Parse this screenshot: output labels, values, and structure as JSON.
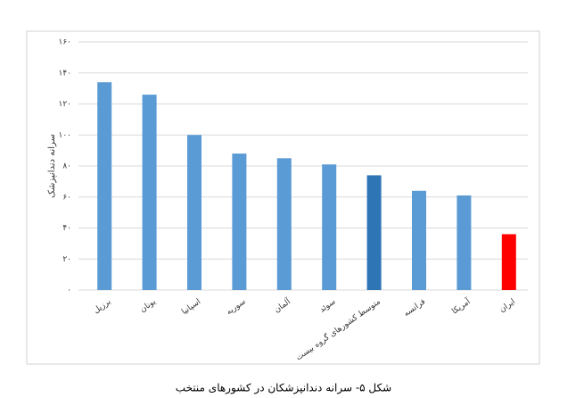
{
  "chart_data": {
    "type": "bar",
    "caption": "شکل ۵- سرانه دندانپزشکان در کشورهای منتخب",
    "y_label": "سرانه دندانپزشک",
    "categories": [
      "برزیل",
      "یونان",
      "اسپانیا",
      "سوریه",
      "آلمان",
      "سوئد",
      "متوسط کشورهای گروه بیست",
      "فرانسه",
      "آمریکا",
      "ایران"
    ],
    "values": [
      134,
      126,
      100,
      88,
      85,
      81,
      74,
      64,
      61,
      36
    ],
    "colors": [
      "#5b9bd5",
      "#5b9bd5",
      "#5b9bd5",
      "#5b9bd5",
      "#5b9bd5",
      "#5b9bd5",
      "#2e75b6",
      "#5b9bd5",
      "#5b9bd5",
      "#ff0000"
    ],
    "ylim": [
      0,
      160
    ],
    "yticks": [
      {
        "value": 0,
        "label": "۰"
      },
      {
        "value": 20,
        "label": "۲۰"
      },
      {
        "value": 40,
        "label": "۴۰"
      },
      {
        "value": 60,
        "label": "۶۰"
      },
      {
        "value": 80,
        "label": "۸۰"
      },
      {
        "value": 100,
        "label": "۱۰۰"
      },
      {
        "value": 120,
        "label": "۱۲۰"
      },
      {
        "value": 140,
        "label": "۱۴۰"
      },
      {
        "value": 160,
        "label": "۱۶۰"
      }
    ],
    "grid": true
  }
}
